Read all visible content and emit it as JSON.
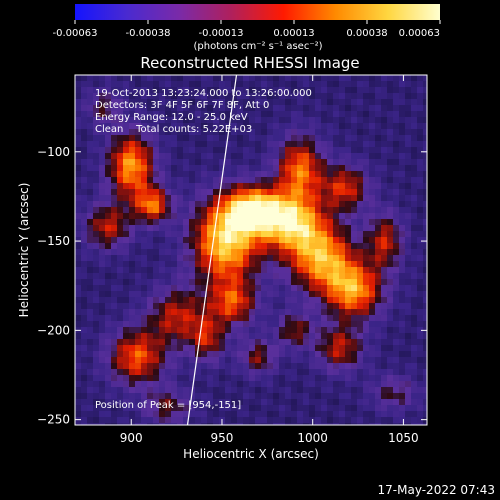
{
  "colorbar": {
    "tick_labels": [
      "-0.00063",
      "-0.00038",
      "-0.00013",
      "0.00013",
      "0.00038",
      "0.00063"
    ],
    "unit_label": "(photons cm⁻² s⁻¹ asec⁻²)",
    "min": -0.00063,
    "max": 0.00063,
    "colors": [
      "#1414ff",
      "#4a2ad0",
      "#7a2aa8",
      "#b0205c",
      "#ff1a00",
      "#ff8a00",
      "#ffd640",
      "#ffffcf"
    ]
  },
  "chart_data": {
    "type": "heatmap",
    "title": "Reconstructed RHESSI Image",
    "xlabel": "Heliocentric X (arcsec)",
    "ylabel": "Heliocentric Y (arcsec)",
    "xlim": [
      869,
      1063
    ],
    "ylim": [
      -253,
      -57
    ],
    "x_ticks": [
      900,
      950,
      1000,
      1050
    ],
    "y_ticks": [
      -250,
      -200,
      -150,
      -100
    ],
    "annotations": [
      "19-Oct-2013 13:23:24.000 to 13:26:00.000",
      "Detectors: 3F 4F 5F 6F 7F 8F, Att 0",
      "Energy Range: 12.0 - 25.0 keV",
      "Clean    Total counts: 5.22E+03"
    ],
    "peak_label": "Position of Peak = [954,-151]",
    "peak": {
      "x": 954,
      "y": -151
    },
    "limb": [
      [
        931,
        -253
      ],
      [
        958,
        -57
      ]
    ],
    "sources": [
      {
        "x": 900,
        "y": -108,
        "sx": 9,
        "sy": 13,
        "a": 0.85
      },
      {
        "x": 912,
        "y": -130,
        "sx": 7,
        "sy": 7,
        "a": 0.7
      },
      {
        "x": 887,
        "y": -142,
        "sx": 9,
        "sy": 9,
        "a": 0.55
      },
      {
        "x": 952,
        "y": -150,
        "sx": 13,
        "sy": 17,
        "a": 1.0
      },
      {
        "x": 968,
        "y": -132,
        "sx": 11,
        "sy": 9,
        "a": 0.85
      },
      {
        "x": 988,
        "y": -140,
        "sx": 13,
        "sy": 11,
        "a": 0.9
      },
      {
        "x": 993,
        "y": -110,
        "sx": 9,
        "sy": 13,
        "a": 0.75
      },
      {
        "x": 1005,
        "y": -160,
        "sx": 13,
        "sy": 13,
        "a": 0.85
      },
      {
        "x": 1023,
        "y": -178,
        "sx": 11,
        "sy": 11,
        "a": 0.8
      },
      {
        "x": 1018,
        "y": -120,
        "sx": 9,
        "sy": 9,
        "a": 0.6
      },
      {
        "x": 1040,
        "y": -150,
        "sx": 7,
        "sy": 11,
        "a": 0.55
      },
      {
        "x": 1015,
        "y": -210,
        "sx": 9,
        "sy": 9,
        "a": 0.55
      },
      {
        "x": 925,
        "y": -192,
        "sx": 11,
        "sy": 11,
        "a": 0.55
      },
      {
        "x": 903,
        "y": -215,
        "sx": 11,
        "sy": 11,
        "a": 0.7
      },
      {
        "x": 942,
        "y": -205,
        "sx": 7,
        "sy": 9,
        "a": 0.5
      },
      {
        "x": 956,
        "y": -185,
        "sx": 9,
        "sy": 9,
        "a": 0.6
      },
      {
        "x": 970,
        "y": -215,
        "sx": 7,
        "sy": 7,
        "a": 0.45
      },
      {
        "x": 990,
        "y": -200,
        "sx": 7,
        "sy": 7,
        "a": 0.45
      },
      {
        "x": 920,
        "y": -243,
        "sx": 9,
        "sy": 7,
        "a": 0.4
      },
      {
        "x": 1045,
        "y": -235,
        "sx": 9,
        "sy": 7,
        "a": 0.35
      },
      {
        "x": 885,
        "y": -75,
        "sx": 7,
        "sy": 7,
        "a": 0.35
      }
    ]
  },
  "timestamp": "17-May-2022 07:43"
}
